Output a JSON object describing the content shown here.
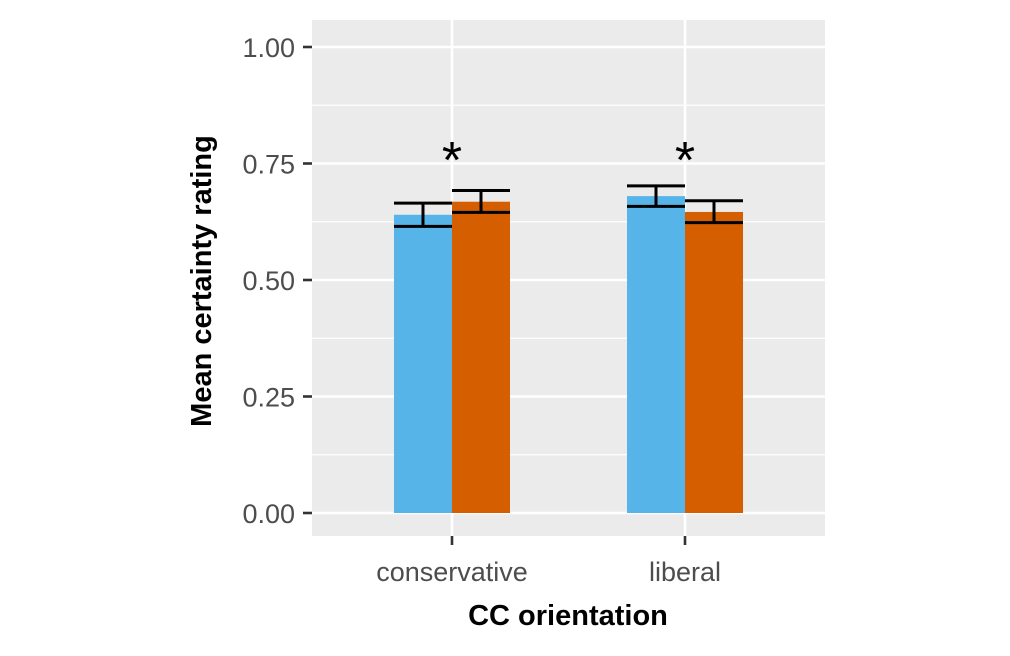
{
  "chart_data": {
    "type": "bar",
    "title": "",
    "xlabel": "CC orientation",
    "ylabel": "Mean certainty rating",
    "categories": [
      "conservative",
      "liberal"
    ],
    "ylim": [
      -0.05,
      1.05
    ],
    "yticks": [
      "0.00",
      "0.25",
      "0.50",
      "0.75",
      "1.00"
    ],
    "ytick_values": [
      0,
      0.25,
      0.5,
      0.75,
      1.0
    ],
    "grid": true,
    "legend": "none",
    "series": [
      {
        "color": "#56B4E9",
        "values": [
          0.64,
          0.68
        ],
        "error_low": [
          0.615,
          0.658
        ],
        "error_high": [
          0.665,
          0.702
        ]
      },
      {
        "color": "#D55E00",
        "values": [
          0.668,
          0.646
        ],
        "error_low": [
          0.645,
          0.623
        ],
        "error_high": [
          0.692,
          0.67
        ]
      }
    ],
    "annotations": [
      "*",
      "*"
    ]
  }
}
